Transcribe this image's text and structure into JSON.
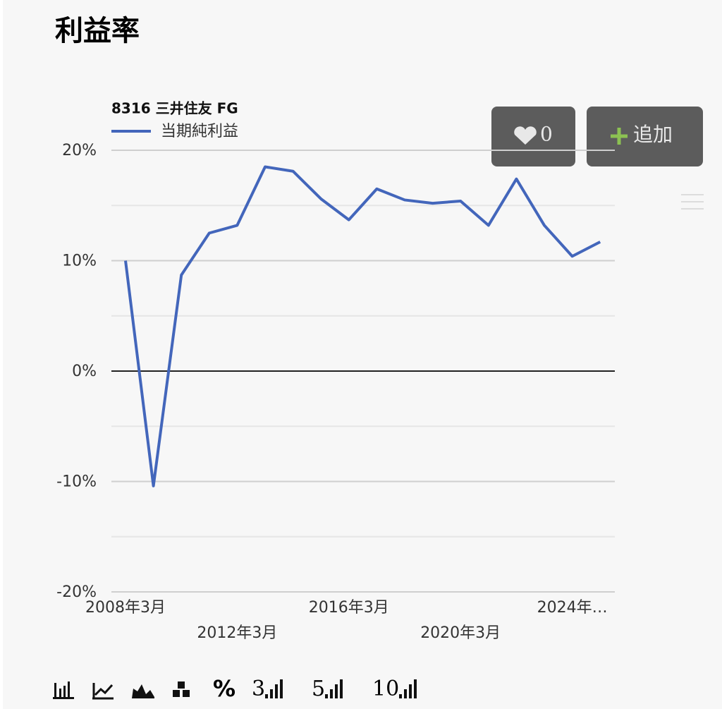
{
  "header": {
    "title": "利益率"
  },
  "buttons": {
    "like_count": 0,
    "add": "追加"
  },
  "toolbar": {
    "percent": "%",
    "periods": [
      "3",
      "5",
      "10"
    ]
  },
  "chart_data": {
    "type": "line",
    "title": "8316 三井住友 FG",
    "categories": [
      "2008年3月",
      null,
      null,
      null,
      "2012年3月",
      null,
      null,
      null,
      "2016年3月",
      null,
      null,
      null,
      "2020年3月",
      null,
      null,
      null,
      "2024年…",
      null
    ],
    "series": [
      {
        "name": "当期純利益",
        "color": "#4366bb",
        "values": [
          10.0,
          -10.4,
          8.7,
          12.5,
          13.2,
          18.5,
          18.1,
          15.6,
          13.7,
          16.5,
          15.5,
          15.2,
          15.4,
          13.2,
          17.4,
          13.2,
          10.4,
          11.7
        ]
      }
    ],
    "ylim": [
      -20,
      20
    ],
    "yticks": [
      {
        "value": -20,
        "label": "-20%"
      },
      {
        "value": -10,
        "label": "-10%"
      },
      {
        "value": 0,
        "label": "0%"
      },
      {
        "value": 10,
        "label": "10%"
      },
      {
        "value": 20,
        "label": "20%"
      }
    ],
    "minor_yticks": [
      -15,
      -5,
      5,
      15
    ],
    "grid": true
  }
}
